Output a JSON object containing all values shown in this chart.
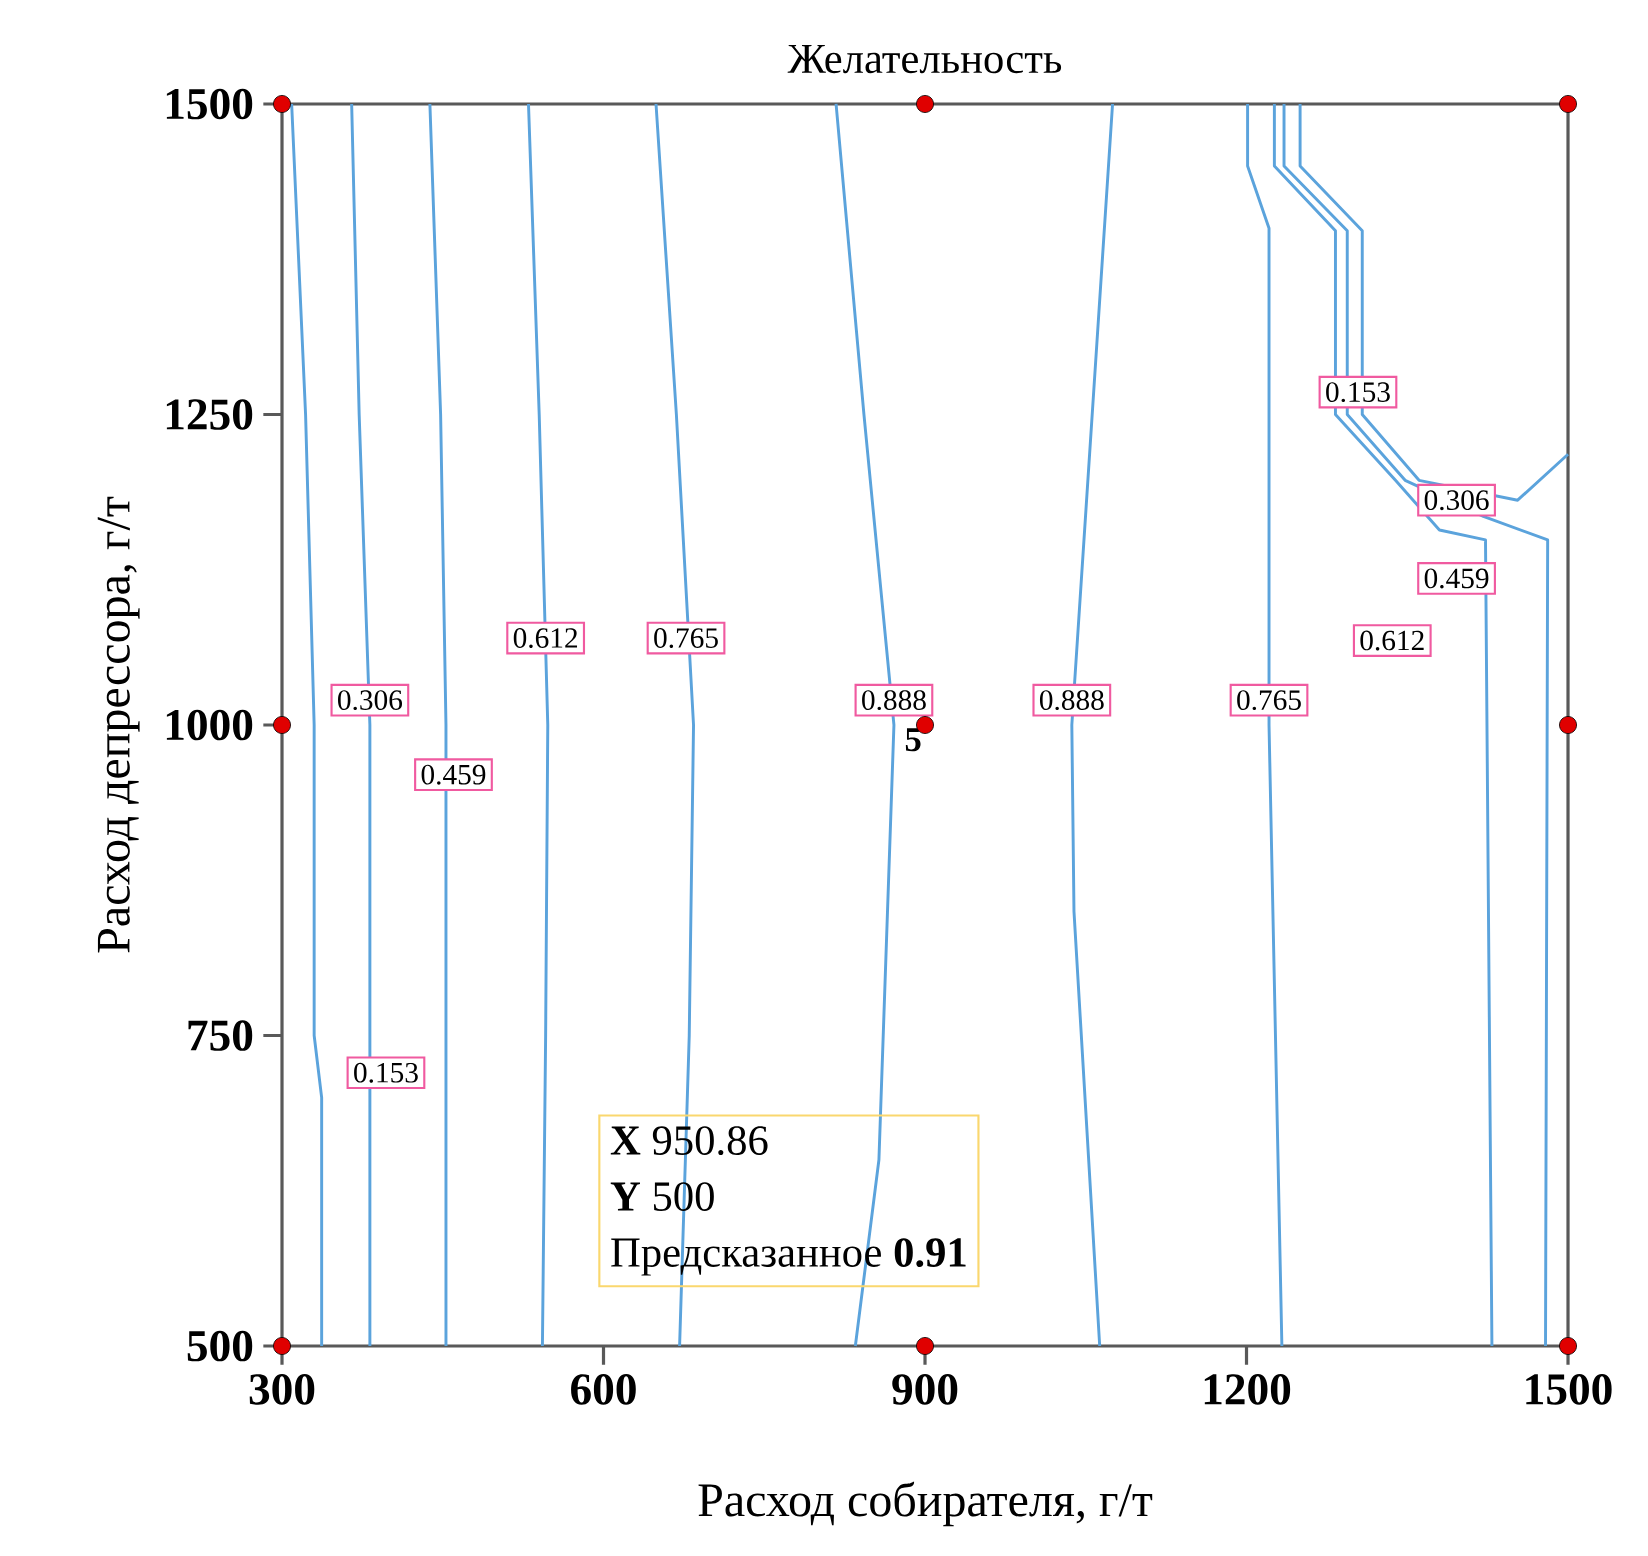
{
  "chart_data": {
    "type": "line",
    "title": "Желательность",
    "xlabel": "Расход собирателя, г/т",
    "ylabel": "Расход депрессора, г/т",
    "xlim": [
      300,
      1500
    ],
    "ylim": [
      500,
      1500
    ],
    "xticks": [
      300,
      600,
      900,
      1200,
      1500
    ],
    "yticks": [
      500,
      750,
      1000,
      1250,
      1500
    ],
    "grid": false,
    "line_style": "solid",
    "series": [
      {
        "color": "#5ba3dc",
        "x": [
          309,
          322,
          330,
          330,
          337,
          337
        ],
        "values": [
          1500,
          1250,
          1000,
          750,
          700,
          500
        ]
      },
      {
        "color": "#5ba3dc",
        "x": [
          365,
          372,
          382,
          382
        ],
        "values": [
          1500,
          1250,
          1000,
          500
        ]
      },
      {
        "color": "#5ba3dc",
        "x": [
          438,
          448,
          453,
          453
        ],
        "values": [
          1500,
          1250,
          1000,
          500
        ]
      },
      {
        "color": "#5ba3dc",
        "x": [
          530,
          540,
          548,
          546,
          543
        ],
        "values": [
          1500,
          1250,
          1000,
          750,
          500
        ]
      },
      {
        "color": "#5ba3dc",
        "x": [
          649,
          668,
          684,
          680,
          671
        ],
        "values": [
          1500,
          1250,
          1000,
          750,
          500
        ]
      },
      {
        "color": "#5ba3dc",
        "x": [
          817,
          843,
          871,
          865,
          857,
          835
        ],
        "values": [
          1500,
          1250,
          1000,
          850,
          650,
          500
        ]
      },
      {
        "color": "#5ba3dc",
        "x": [
          1075,
          1056,
          1037,
          1039,
          1063
        ],
        "values": [
          1500,
          1250,
          1000,
          850,
          500
        ]
      },
      {
        "color": "#5ba3dc",
        "x": [
          1201,
          1201,
          1221,
          1221,
          1233
        ],
        "values": [
          1500,
          1450,
          1400,
          1000,
          500
        ]
      },
      {
        "color": "#5ba3dc",
        "x": [
          1226,
          1226,
          1283,
          1283,
          1339,
          1380,
          1423,
          1429
        ],
        "values": [
          1500,
          1450,
          1398,
          1250,
          1197,
          1157,
          1149,
          500
        ]
      },
      {
        "color": "#5ba3dc",
        "x": [
          1235,
          1235,
          1294,
          1294,
          1348,
          1421,
          1481,
          1479
        ],
        "values": [
          1500,
          1450,
          1398,
          1250,
          1197,
          1168,
          1149,
          500
        ]
      },
      {
        "color": "#5ba3dc",
        "x": [
          1250,
          1250,
          1308,
          1308,
          1361,
          1453,
          1500
        ],
        "values": [
          1500,
          1450,
          1398,
          1250,
          1197,
          1181,
          1218
        ]
      },
      {
        "type": "scatter",
        "color": "#e00000",
        "marker": "circle",
        "x": [
          300,
          900,
          1500,
          300,
          900,
          1500,
          300,
          900,
          1500
        ],
        "values": [
          500,
          500,
          500,
          1000,
          1000,
          1000,
          1500,
          1500,
          1500
        ]
      }
    ],
    "annotations": [
      {
        "text": "0.153",
        "x": 397,
        "y": 720
      },
      {
        "text": "0.306",
        "x": 382,
        "y": 1020
      },
      {
        "text": "0.459",
        "x": 460,
        "y": 960
      },
      {
        "text": "0.612",
        "x": 546,
        "y": 1070
      },
      {
        "text": "0.765",
        "x": 677,
        "y": 1070
      },
      {
        "text": "0.888",
        "x": 871,
        "y": 1020
      },
      {
        "text": "5",
        "x": 900,
        "y": 1000
      },
      {
        "text": "0.888",
        "x": 1037,
        "y": 1020
      },
      {
        "text": "0.765",
        "x": 1221,
        "y": 1020
      },
      {
        "text": "0.612",
        "x": 1336,
        "y": 1068
      },
      {
        "text": "0.459",
        "x": 1396,
        "y": 1118
      },
      {
        "text": "0.306",
        "x": 1396,
        "y": 1181
      },
      {
        "text": "0.153",
        "x": 1304,
        "y": 1268
      },
      "**X** 950.86",
      "**Y** 500",
      "Предсказанное **0.91**"
    ]
  }
}
